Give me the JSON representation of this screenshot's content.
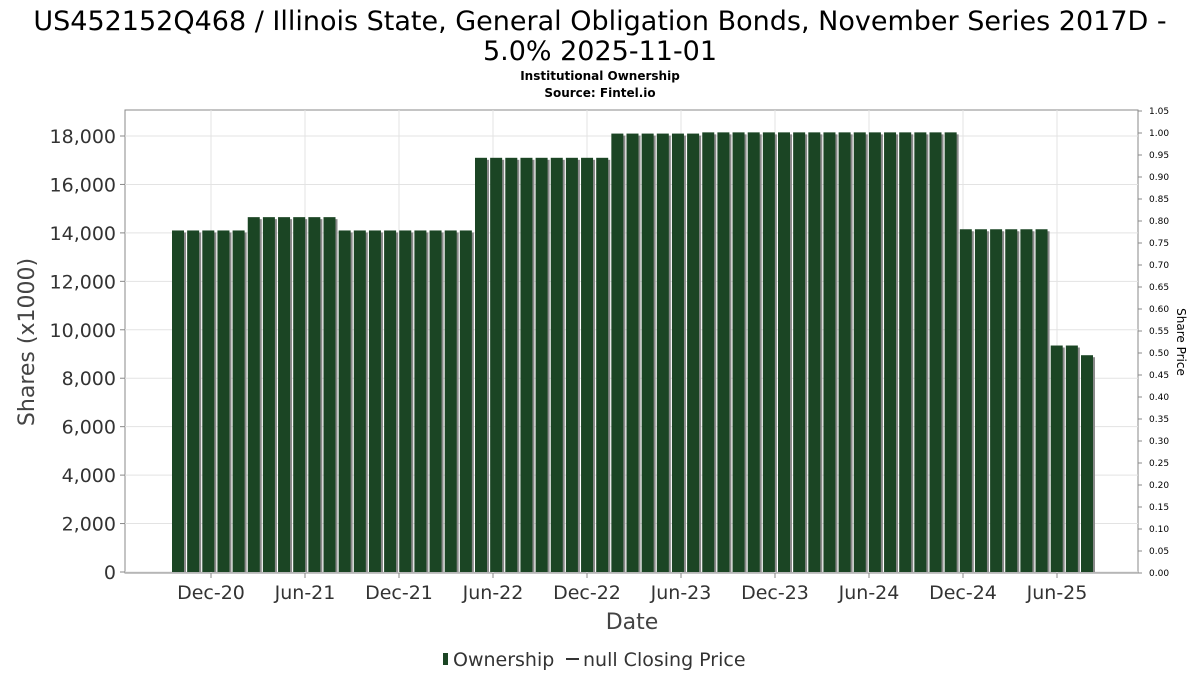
{
  "chart_data": {
    "type": "bar",
    "title_line1": "US452152Q468 / Illinois State, General Obligation Bonds, November Series 2017D -",
    "title_line2": "5.0% 2025-11-01",
    "subtitle_line1": "Institutional Ownership",
    "subtitle_line2": "Source: Fintel.io",
    "xlabel": "Date",
    "ylabel": "Shares (x1000)",
    "y2label": "Share Price",
    "ylim": [
      0,
      19000
    ],
    "y2lim": [
      0,
      1.05
    ],
    "yticks": [
      "0",
      "2,000",
      "4,000",
      "6,000",
      "8,000",
      "10,000",
      "12,000",
      "14,000",
      "16,000",
      "18,000"
    ],
    "y2ticks": [
      "0.00",
      "0.05",
      "0.10",
      "0.15",
      "0.20",
      "0.25",
      "0.30",
      "0.35",
      "0.40",
      "0.45",
      "0.50",
      "0.55",
      "0.60",
      "0.65",
      "0.70",
      "0.75",
      "0.80",
      "0.85",
      "0.90",
      "0.95",
      "1.00",
      "1.05"
    ],
    "xticks": [
      "Dec-20",
      "Jun-21",
      "Dec-21",
      "Jun-22",
      "Dec-22",
      "Jun-23",
      "Dec-23",
      "Jun-24",
      "Dec-24",
      "Jun-25"
    ],
    "grid": true,
    "legend_position": "bottom",
    "series": [
      {
        "name": "Ownership",
        "color": "#1b4524",
        "values": [
          14100,
          14100,
          14100,
          14100,
          14100,
          14650,
          14650,
          14650,
          14650,
          14650,
          14650,
          14100,
          14100,
          14100,
          14100,
          14100,
          14100,
          14100,
          14100,
          14100,
          17100,
          17100,
          17100,
          17100,
          17100,
          17100,
          17100,
          17100,
          17100,
          18100,
          18100,
          18100,
          18100,
          18100,
          18100,
          18150,
          18150,
          18150,
          18150,
          18150,
          18150,
          18150,
          18150,
          18150,
          18150,
          18150,
          18150,
          18150,
          18150,
          18150,
          18150,
          18150,
          14150,
          14150,
          14150,
          14150,
          14150,
          14150,
          9350,
          9350,
          8950
        ]
      }
    ],
    "legend": {
      "ownership_label": "Ownership",
      "price_label": "null Closing Price"
    }
  }
}
